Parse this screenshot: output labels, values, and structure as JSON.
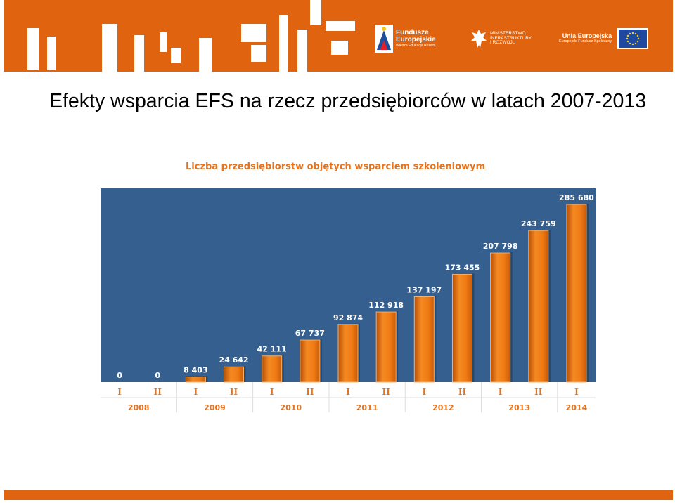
{
  "slide": {
    "title": "Efekty wsparcia EFS na rzecz przedsiębiorców w latach 2007-2013"
  },
  "logos": {
    "fe_line1": "Fundusze",
    "fe_line2": "Europejskie",
    "fe_line3": "Wiedza Edukacja Rozwój",
    "min_line1": "MINISTERSTWO",
    "min_line2": "INFRASTRUKTURY",
    "min_line3": "I ROZWOJU",
    "ue_line1": "Unia Europejska",
    "ue_line2": "Europejski Fundusz Społeczny"
  },
  "colors": {
    "banner": "#e06410",
    "plot_background": "#355f8f",
    "bar": "#f07a14",
    "chart_title": "#e8731d",
    "axis_text": "#e8731d"
  },
  "chart_data": {
    "type": "bar",
    "title": "Liczba przedsiębiorstw objętych wsparciem szkoleniowym",
    "categories": [
      "I",
      "II",
      "I",
      "II",
      "I",
      "II",
      "I",
      "II",
      "I",
      "II",
      "I",
      "II",
      "I"
    ],
    "groups": [
      {
        "label": "2008",
        "count": 2
      },
      {
        "label": "2009",
        "count": 2
      },
      {
        "label": "2010",
        "count": 2
      },
      {
        "label": "2011",
        "count": 2
      },
      {
        "label": "2012",
        "count": 2
      },
      {
        "label": "2013",
        "count": 2
      },
      {
        "label": "2014",
        "count": 1
      }
    ],
    "values": [
      0,
      0,
      8403,
      24642,
      42111,
      67737,
      92874,
      112918,
      137197,
      173455,
      207798,
      243759,
      285680
    ],
    "value_labels": [
      "0",
      "0",
      "8 403",
      "24 642",
      "42 111",
      "67 737",
      "92 874",
      "112 918",
      "137 197",
      "173 455",
      "207 798",
      "243 759",
      "285 680"
    ],
    "ylim": [
      0,
      300000
    ],
    "grid": false,
    "legend": "none"
  }
}
